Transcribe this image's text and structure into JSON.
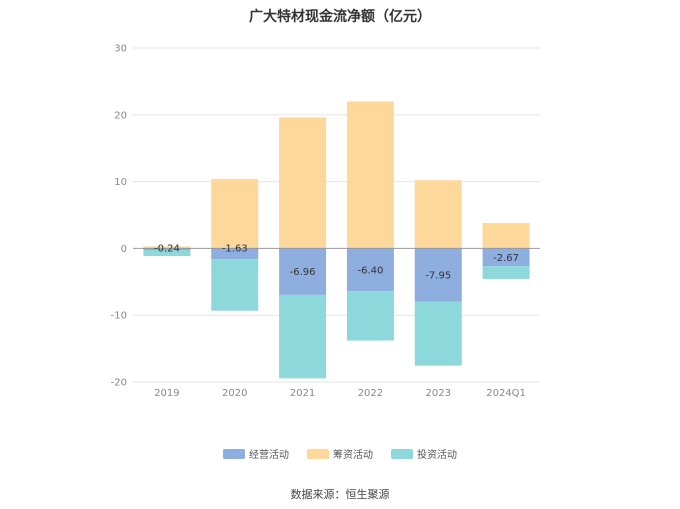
{
  "chart_data": {
    "type": "bar",
    "stacked": true,
    "title": "广大特材现金流净额（亿元）",
    "categories": [
      "2019",
      "2020",
      "2021",
      "2022",
      "2023",
      "2024Q1"
    ],
    "series": [
      {
        "name": "经营活动",
        "color": "#8eaee0",
        "values": [
          -0.24,
          -1.63,
          -6.96,
          -6.4,
          -7.95,
          -2.67
        ]
      },
      {
        "name": "筹资活动",
        "color": "#fdd89a",
        "values": [
          0.3,
          10.4,
          19.6,
          22.0,
          10.2,
          3.8
        ]
      },
      {
        "name": "投资活动",
        "color": "#8dd8db",
        "values": [
          -0.9,
          -7.7,
          -12.5,
          -7.4,
          -9.6,
          -1.9
        ]
      }
    ],
    "data_labels": [
      "-0.24",
      "-1.63",
      "-6.96",
      "-6.40",
      "-7.95",
      "-2.67"
    ],
    "yticks": [
      "30",
      "20",
      "10",
      "0",
      "-10",
      "-20"
    ],
    "ylim": [
      -20,
      30
    ],
    "xlabel": "",
    "ylabel": "",
    "grid": true,
    "legend_position": "bottom",
    "source": "数据来源：恒生聚源"
  }
}
